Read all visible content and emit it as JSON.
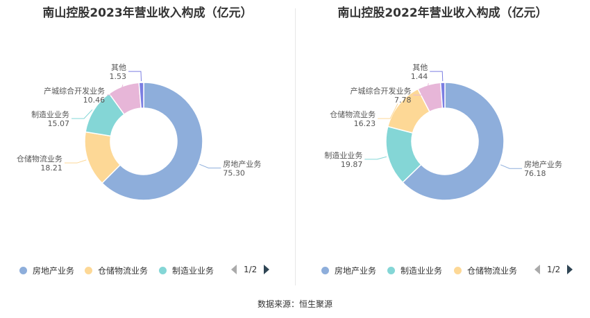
{
  "source_text": "数据来源：恒生聚源",
  "chart_data": [
    {
      "type": "pie",
      "title": "南山控股2023年营业收入构成（亿元）",
      "slices": [
        {
          "name": "房地产业务",
          "value": 75.3,
          "label": "75.30",
          "color": "#8eaedb"
        },
        {
          "name": "仓储物流业务",
          "value": 18.21,
          "label": "18.21",
          "color": "#fdd896"
        },
        {
          "name": "制造业业务",
          "value": 15.07,
          "label": "15.07",
          "color": "#84d6d6"
        },
        {
          "name": "产城综合开发业务",
          "value": 10.46,
          "label": "10.46",
          "color": "#e7b6d8"
        },
        {
          "name": "其他",
          "value": 1.53,
          "label": "1.53",
          "color": "#7b7ee2"
        }
      ],
      "legend": [
        "房地产业务",
        "仓储物流业务",
        "制造业业务"
      ],
      "legend_colors": [
        "#8eaedb",
        "#fdd896",
        "#84d6d6"
      ],
      "pager": "1/2"
    },
    {
      "type": "pie",
      "title": "南山控股2022年营业收入构成（亿元）",
      "slices": [
        {
          "name": "房地产业务",
          "value": 76.18,
          "label": "76.18",
          "color": "#8eaedb"
        },
        {
          "name": "制造业业务",
          "value": 19.87,
          "label": "19.87",
          "color": "#84d6d6"
        },
        {
          "name": "仓储物流业务",
          "value": 16.23,
          "label": "16.23",
          "color": "#fdd896"
        },
        {
          "name": "产城综合开发业务",
          "value": 7.78,
          "label": "7.78",
          "color": "#e7b6d8"
        },
        {
          "name": "其他",
          "value": 1.44,
          "label": "1.44",
          "color": "#7b7ee2"
        }
      ],
      "legend": [
        "房地产业务",
        "制造业业务",
        "仓储物流业务"
      ],
      "legend_colors": [
        "#8eaedb",
        "#84d6d6",
        "#fdd896"
      ],
      "pager": "1/2"
    }
  ]
}
